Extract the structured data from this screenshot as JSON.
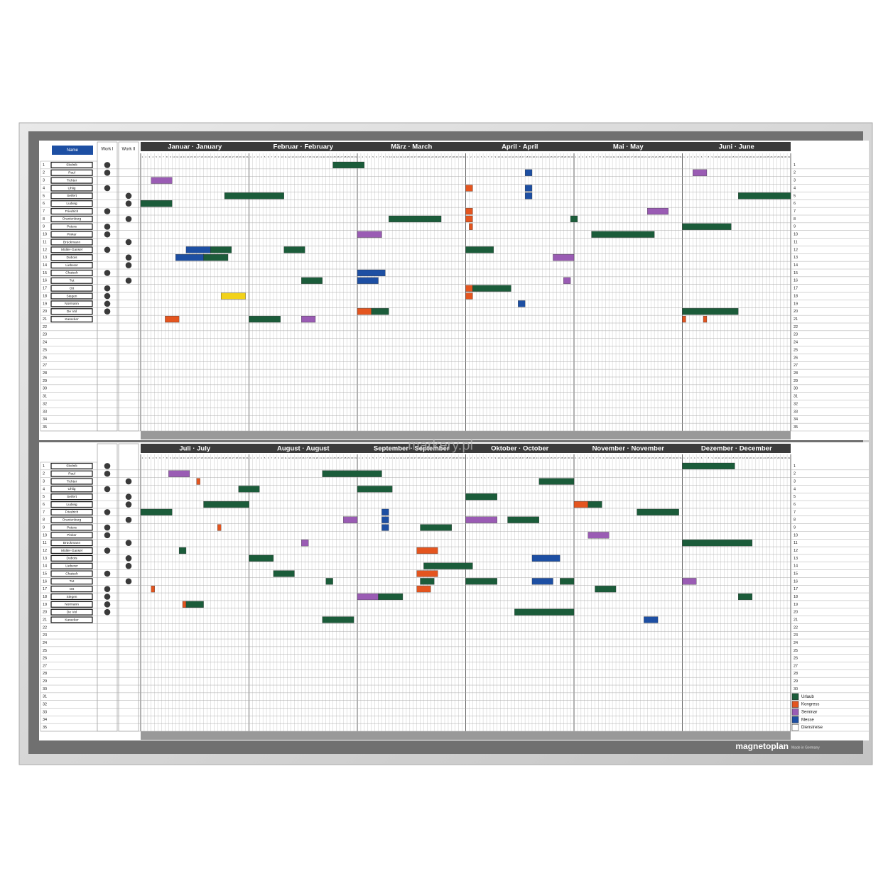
{
  "brand": "magnetoplan",
  "made_in": "Made in Germany",
  "watermark": "markery.pl",
  "name_label": "Name",
  "work_columns": [
    "Work I",
    "Work II"
  ],
  "months": [
    "Januar · January",
    "Februar · February",
    "März · March",
    "April · April",
    "Mai · May",
    "Juni · June",
    "Juli · July",
    "August · August",
    "September · September",
    "Oktober · October",
    "November · November",
    "Dezember · December"
  ],
  "day_numbers": [
    1,
    2,
    3,
    4,
    5,
    6,
    7,
    8,
    9,
    10,
    11,
    12,
    13,
    14,
    15,
    16,
    17,
    18,
    19,
    20,
    21,
    22,
    23,
    24,
    25,
    26,
    27,
    28,
    29,
    30,
    31
  ],
  "row_numbers": [
    1,
    2,
    3,
    4,
    5,
    6,
    7,
    8,
    9,
    10,
    11,
    12,
    13,
    14,
    15,
    16,
    17,
    18,
    19,
    20,
    21,
    22,
    23,
    24,
    25,
    26,
    27,
    28,
    29,
    30,
    31,
    32,
    33,
    34,
    35
  ],
  "names": [
    "Skolnik",
    "Paul",
    "Tichter",
    "Uhlig",
    "Seifert",
    "Ludwig",
    "Friedrich",
    "Oranienburg",
    "Peters",
    "Pinker",
    "Brückmann",
    "Müller-Gansel",
    "Dubois",
    "Lieberer",
    "Chatsch",
    "Tut",
    "Ott",
    "Siegen",
    "Normann",
    "De Vol",
    "Karacker"
  ],
  "work_dots": {
    "top": [
      [
        1,
        2,
        4,
        7,
        9,
        10,
        12,
        15,
        17,
        18,
        19,
        20
      ],
      [
        5,
        6,
        8,
        11,
        13,
        14,
        16
      ]
    ],
    "bottom": [
      [
        1,
        2,
        4,
        7,
        9,
        10,
        12,
        15,
        17,
        18,
        19,
        20
      ],
      [
        3,
        5,
        6,
        8,
        11,
        13,
        14,
        16
      ]
    ]
  },
  "magnet_colors": [
    "#1b5c3a",
    "#e4551f",
    "#9a5cb4",
    "#1d4fa3",
    "#ffffff",
    "#f2d21a"
  ],
  "legend": [
    "Urlaub",
    "Kongress",
    "Seminar",
    "Messe",
    "Dienstreise"
  ],
  "bookings": [
    [
      1,
      1,
      25,
      9,
      0
    ],
    [
      3,
      0,
      4,
      6,
      2
    ],
    [
      2,
      3,
      18,
      2,
      3
    ],
    [
      2,
      5,
      4,
      4,
      2
    ],
    [
      4,
      3,
      1,
      2,
      1
    ],
    [
      4,
      3,
      18,
      2,
      3
    ],
    [
      5,
      3,
      18,
      2,
      3
    ],
    [
      5,
      0,
      25,
      17,
      0
    ],
    [
      5,
      5,
      17,
      15,
      0
    ],
    [
      6,
      0,
      1,
      9,
      0
    ],
    [
      7,
      3,
      1,
      2,
      1
    ],
    [
      7,
      4,
      22,
      6,
      2
    ],
    [
      8,
      3,
      1,
      2,
      1
    ],
    [
      8,
      2,
      10,
      15,
      0
    ],
    [
      8,
      3,
      31,
      2,
      0
    ],
    [
      9,
      3,
      2,
      1,
      1
    ],
    [
      9,
      5,
      1,
      14,
      0
    ],
    [
      10,
      2,
      1,
      7,
      2
    ],
    [
      10,
      4,
      6,
      18,
      0
    ],
    [
      12,
      0,
      14,
      7,
      3
    ],
    [
      12,
      0,
      21,
      6,
      0
    ],
    [
      12,
      1,
      11,
      6,
      0
    ],
    [
      12,
      3,
      1,
      8,
      0
    ],
    [
      13,
      0,
      11,
      8,
      3
    ],
    [
      13,
      0,
      19,
      7,
      0
    ],
    [
      13,
      3,
      26,
      6,
      2
    ],
    [
      15,
      2,
      1,
      8,
      3
    ],
    [
      16,
      2,
      1,
      6,
      3
    ],
    [
      16,
      1,
      16,
      6,
      0
    ],
    [
      16,
      3,
      29,
      2,
      2
    ],
    [
      17,
      3,
      1,
      2,
      1
    ],
    [
      17,
      3,
      3,
      11,
      0
    ],
    [
      18,
      3,
      1,
      2,
      1
    ],
    [
      18,
      0,
      24,
      7,
      5
    ],
    [
      19,
      3,
      16,
      2,
      3
    ],
    [
      20,
      2,
      1,
      4,
      1
    ],
    [
      20,
      2,
      5,
      5,
      0
    ],
    [
      20,
      5,
      1,
      16,
      0
    ],
    [
      21,
      0,
      8,
      4,
      1
    ],
    [
      21,
      1,
      1,
      9,
      0
    ],
    [
      21,
      1,
      16,
      4,
      2
    ],
    [
      21,
      5,
      1,
      1,
      1
    ],
    [
      21,
      5,
      7,
      1,
      1
    ],
    [
      1,
      11,
      1,
      15,
      0
    ],
    [
      2,
      6,
      9,
      6,
      2
    ],
    [
      2,
      7,
      22,
      17,
      0
    ],
    [
      3,
      6,
      17,
      1,
      1
    ],
    [
      3,
      9,
      22,
      10,
      0
    ],
    [
      4,
      6,
      29,
      6,
      0
    ],
    [
      4,
      8,
      1,
      10,
      0
    ],
    [
      5,
      9,
      1,
      9,
      0
    ],
    [
      6,
      6,
      19,
      13,
      0
    ],
    [
      6,
      10,
      1,
      4,
      1
    ],
    [
      6,
      10,
      5,
      4,
      0
    ],
    [
      7,
      6,
      1,
      9,
      0
    ],
    [
      7,
      8,
      8,
      2,
      3
    ],
    [
      7,
      10,
      19,
      12,
      0
    ],
    [
      8,
      7,
      28,
      4,
      2
    ],
    [
      8,
      8,
      8,
      2,
      3
    ],
    [
      8,
      9,
      1,
      9,
      2
    ],
    [
      8,
      9,
      13,
      9,
      0
    ],
    [
      9,
      6,
      23,
      1,
      1
    ],
    [
      9,
      8,
      8,
      2,
      3
    ],
    [
      9,
      8,
      19,
      9,
      0
    ],
    [
      10,
      10,
      5,
      6,
      2
    ],
    [
      11,
      7,
      16,
      2,
      2
    ],
    [
      11,
      11,
      1,
      20,
      0
    ],
    [
      12,
      6,
      12,
      2,
      0
    ],
    [
      12,
      8,
      18,
      6,
      1
    ],
    [
      13,
      7,
      1,
      7,
      0
    ],
    [
      13,
      9,
      20,
      8,
      3
    ],
    [
      14,
      8,
      20,
      14,
      0
    ],
    [
      15,
      7,
      8,
      6,
      0
    ],
    [
      15,
      8,
      18,
      6,
      1
    ],
    [
      16,
      7,
      23,
      2,
      0
    ],
    [
      16,
      8,
      19,
      4,
      0
    ],
    [
      16,
      9,
      1,
      9,
      0
    ],
    [
      16,
      9,
      20,
      6,
      3
    ],
    [
      16,
      9,
      28,
      4,
      0
    ],
    [
      16,
      11,
      1,
      4,
      2
    ],
    [
      17,
      6,
      4,
      1,
      1
    ],
    [
      17,
      8,
      18,
      4,
      1
    ],
    [
      17,
      10,
      7,
      6,
      0
    ],
    [
      18,
      8,
      1,
      6,
      2
    ],
    [
      18,
      8,
      7,
      7,
      0
    ],
    [
      18,
      11,
      17,
      4,
      0
    ],
    [
      19,
      6,
      13,
      1,
      1
    ],
    [
      19,
      6,
      14,
      5,
      0
    ],
    [
      20,
      9,
      15,
      17,
      0
    ],
    [
      21,
      7,
      22,
      9,
      0
    ],
    [
      21,
      10,
      21,
      4,
      3
    ]
  ]
}
